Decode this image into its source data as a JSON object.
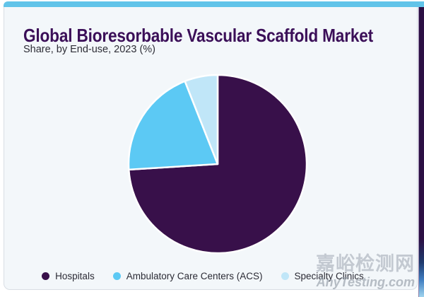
{
  "header": {
    "title": "Global Bioresorbable Vascular Scaffold Market",
    "subtitle": "Share, by End-use, 2023 (%)"
  },
  "legend": {
    "items": [
      {
        "label": "Hospitals",
        "color": "#38104a"
      },
      {
        "label": "Ambulatory Care Centers (ACS)",
        "color": "#5cc9f4"
      },
      {
        "label": "Specialty Clinics",
        "color": "#c0e6f8"
      }
    ]
  },
  "watermark": {
    "cn": "嘉峪检测网",
    "en": "AnyTesting.com"
  },
  "colors": {
    "accent_bar": "#61c4e9",
    "card_background": "#f3f7fa",
    "card_border": "#d9dee4",
    "title_text": "#3b0f58",
    "subtitle_text": "#2d2d36",
    "legend_text": "#2b2b35",
    "side_strip": "#2c0f44",
    "slice_divider": "#ffffff"
  },
  "chart_data": {
    "type": "pie",
    "title": "Global Bioresorbable Vascular Scaffold Market",
    "subtitle": "Share, by End-use, 2023 (%)",
    "categories": [
      "Hospitals",
      "Ambulatory Care Centers (ACS)",
      "Specialty Clinics"
    ],
    "values": [
      74,
      20,
      6
    ],
    "unit": "%",
    "colors": [
      "#38104a",
      "#5cc9f4",
      "#c0e6f8"
    ],
    "start_angle_deg": 0,
    "direction": "clockwise",
    "legend_position": "bottom",
    "data_labels_visible": false
  }
}
